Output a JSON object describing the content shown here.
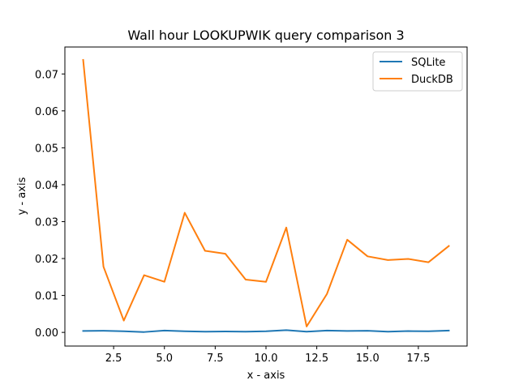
{
  "chart_data": {
    "type": "line",
    "title": "Wall hour LOOKUPWIK query comparison 3",
    "xlabel": "x - axis",
    "ylabel": "y - axis",
    "x": [
      1,
      2,
      3,
      4,
      5,
      6,
      7,
      8,
      9,
      10,
      11,
      12,
      13,
      14,
      15,
      16,
      17,
      18,
      19
    ],
    "xlim": [
      0.1,
      19.9
    ],
    "ylim": [
      -0.0037,
      0.0773
    ],
    "xticks": [
      2.5,
      5.0,
      7.5,
      10.0,
      12.5,
      15.0,
      17.5
    ],
    "xtick_labels": [
      "2.5",
      "5.0",
      "7.5",
      "10.0",
      "12.5",
      "15.0",
      "17.5"
    ],
    "yticks": [
      0.0,
      0.01,
      0.02,
      0.03,
      0.04,
      0.05,
      0.06,
      0.07
    ],
    "ytick_labels": [
      "0.00",
      "0.01",
      "0.02",
      "0.03",
      "0.04",
      "0.05",
      "0.06",
      "0.07"
    ],
    "grid": false,
    "legend_position": "top-right",
    "series": [
      {
        "name": "SQLite",
        "color": "#1f77b4",
        "values": [
          0.0004,
          0.00045,
          0.0003,
          0.0001,
          0.0005,
          0.0003,
          0.0002,
          0.00025,
          0.0002,
          0.0003,
          0.0006,
          0.0002,
          0.0005,
          0.0004,
          0.00045,
          0.0002,
          0.00035,
          0.0003,
          0.0005
        ]
      },
      {
        "name": "DuckDB",
        "color": "#ff7f0e",
        "values": [
          0.0738,
          0.0178,
          0.0032,
          0.0155,
          0.0137,
          0.0324,
          0.0221,
          0.0213,
          0.0143,
          0.0137,
          0.0284,
          0.0016,
          0.0104,
          0.0251,
          0.0206,
          0.0196,
          0.0199,
          0.019,
          0.0234
        ]
      }
    ]
  }
}
